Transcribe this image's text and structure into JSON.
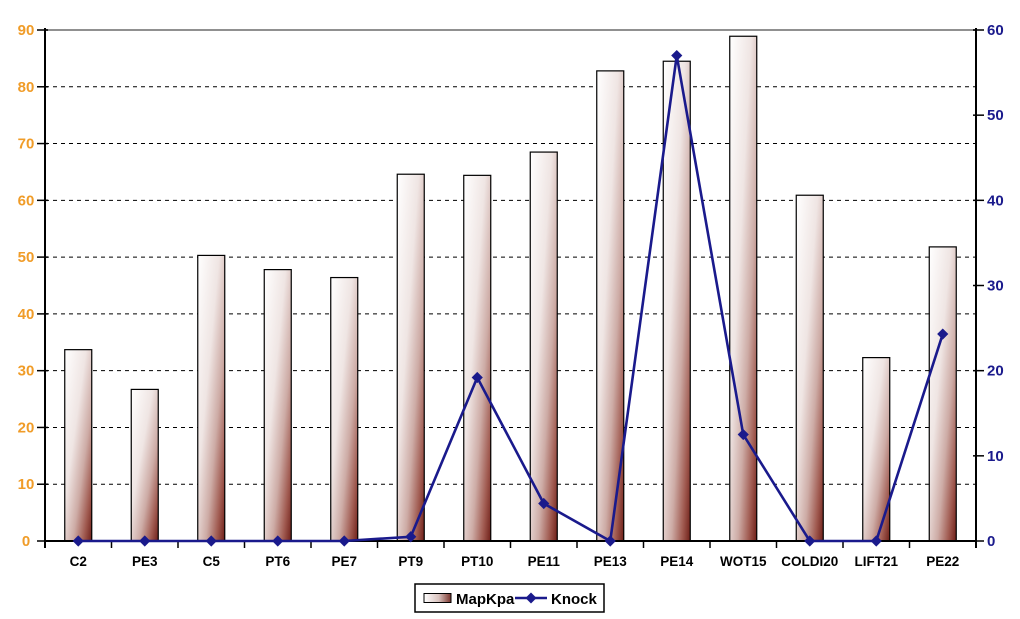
{
  "legend": {
    "items": [
      {
        "label": "MapKpa",
        "type": "bar"
      },
      {
        "label": "Knock",
        "type": "line"
      }
    ],
    "position": "bottom-center"
  },
  "chart_data": {
    "type": "combo",
    "title": "",
    "categories": [
      "C2",
      "PE3",
      "C5",
      "PT6",
      "PE7",
      "PT9",
      "PT10",
      "PE11",
      "PE13",
      "PE14",
      "WOT15",
      "COLDI20",
      "LIFT21",
      "PE22"
    ],
    "series": [
      {
        "name": "MapKpa",
        "type": "bar",
        "axis": "left",
        "values": [
          33.7,
          26.7,
          50.3,
          47.8,
          46.4,
          64.6,
          64.4,
          68.5,
          82.8,
          84.5,
          88.9,
          60.9,
          32.3,
          51.8
        ]
      },
      {
        "name": "Knock",
        "type": "line",
        "axis": "right",
        "values": [
          0,
          0,
          0,
          0,
          0,
          0.5,
          19.2,
          4.4,
          0,
          57,
          12.5,
          0,
          0,
          24.3
        ]
      }
    ],
    "left_axis": {
      "min": 0,
      "max": 90,
      "step": 10,
      "ticks": [
        0,
        10,
        20,
        30,
        40,
        50,
        60,
        70,
        80,
        90
      ],
      "label_color": "#F09C28"
    },
    "right_axis": {
      "min": 0,
      "max": 60,
      "step": 10,
      "ticks": [
        0,
        10,
        20,
        30,
        40,
        50,
        60
      ],
      "label_color": "#1A1A8C"
    },
    "grid": {
      "horizontal": "dashed-black",
      "top_border": "solid-gray"
    },
    "legend_position": "bottom-center",
    "colors": {
      "background": "#FFFFFF",
      "bar_gradient_start": "#FFFFFF",
      "bar_gradient_end": "#6E1F18",
      "bar_stroke": "#000000",
      "line": "#1A1A8C",
      "marker": "#1A1A8C",
      "category_label": "#000000",
      "axis_line": "#000000",
      "top_border": "#909090",
      "legend_border": "#000000"
    }
  }
}
